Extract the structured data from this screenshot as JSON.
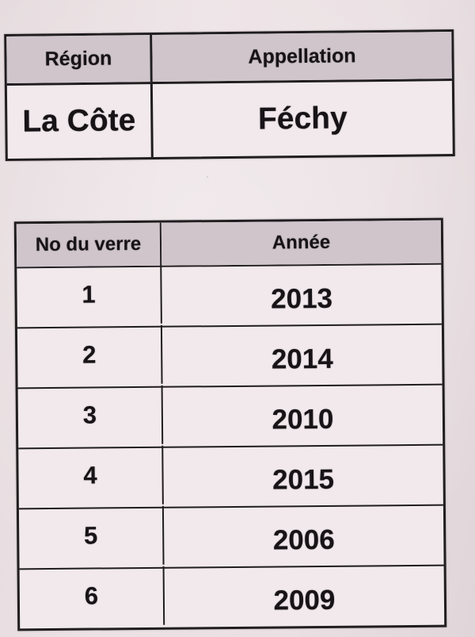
{
  "colors": {
    "paper": "#e8dee1",
    "header_bg": "#cfc5cb",
    "cell_bg": "#f1e9ec",
    "border": "#201d1f",
    "text": "#171316"
  },
  "region_table": {
    "headers": {
      "region": "Région",
      "appellation": "Appellation"
    },
    "values": {
      "region": "La Côte",
      "appellation": "Féchy"
    }
  },
  "glasses_table": {
    "headers": {
      "glass_no": "No du verre",
      "year": "Année"
    },
    "rows": [
      {
        "glass_no": "1",
        "year": "2013"
      },
      {
        "glass_no": "2",
        "year": "2014"
      },
      {
        "glass_no": "3",
        "year": "2010"
      },
      {
        "glass_no": "4",
        "year": "2015"
      },
      {
        "glass_no": "5",
        "year": "2006"
      },
      {
        "glass_no": "6",
        "year": "2009"
      }
    ]
  }
}
